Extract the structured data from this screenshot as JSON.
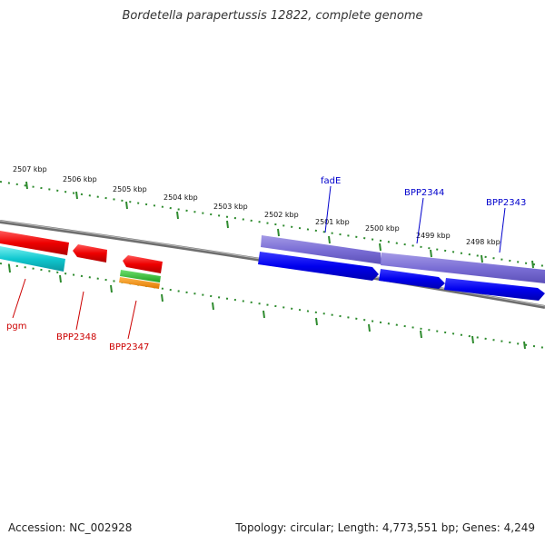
{
  "title": "Bordetella parapertussis 12822, complete genome",
  "footer": {
    "accession": "Accession: NC_002928",
    "summary": "Topology: circular; Length: 4,773,551 bp; Genes: 4,249"
  },
  "colors": {
    "ticks": "#2e8b2e",
    "backbone": "#808080",
    "forward_label": "#0000cc",
    "reverse_label": "#cc0000"
  },
  "scale_labels": [
    "2507 kbp",
    "2506 kbp",
    "2505 kbp",
    "2504 kbp",
    "2503 kbp",
    "2502 kbp",
    "2501 kbp",
    "2500 kbp",
    "2499 kbp",
    "2498 kbp"
  ],
  "gene_labels": [
    {
      "name": "fadE",
      "strand": "forward"
    },
    {
      "name": "BPP2344",
      "strand": "forward"
    },
    {
      "name": "BPP2343",
      "strand": "forward"
    },
    {
      "name": "pgm",
      "strand": "reverse"
    },
    {
      "name": "BPP2348",
      "strand": "reverse"
    },
    {
      "name": "BPP2347",
      "strand": "reverse"
    }
  ]
}
